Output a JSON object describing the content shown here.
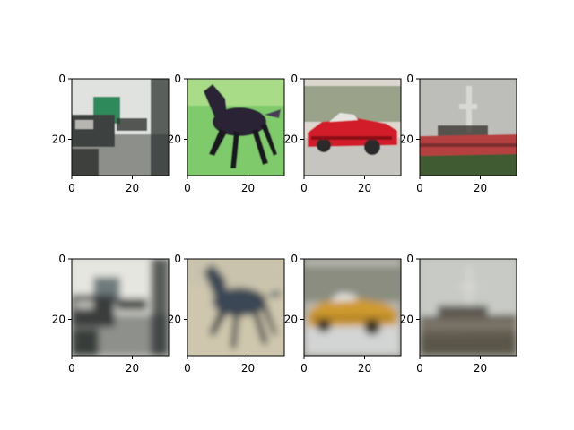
{
  "chart_data": {
    "type": "image-grid",
    "rows": 2,
    "cols": 4,
    "axis": {
      "xlim": [
        0,
        32
      ],
      "ylim": [
        32,
        0
      ],
      "xticks": [
        0,
        20
      ],
      "yticks": [
        0,
        20
      ],
      "xtick_labels": [
        "0",
        "20"
      ],
      "ytick_labels": [
        "0",
        "20"
      ]
    },
    "panels": [
      {
        "row": 0,
        "col": 0,
        "image_kind": "sharp",
        "content": "truck",
        "palette": {
          "bg": "#c8cbc6",
          "sky": "#dfe2de",
          "ground": "#8d8f8a",
          "obj": "#3d4240",
          "obj2": "#2d8a5a",
          "accent": "#b8b6b2",
          "dark": "#2e3330"
        }
      },
      {
        "row": 0,
        "col": 1,
        "image_kind": "sharp",
        "content": "horse",
        "palette": {
          "bg": "#7fca6a",
          "sky": "#a9dc86",
          "ground": "#79c464",
          "obj": "#2a2036",
          "obj2": "#4a3a56",
          "accent": "#e8e0e4",
          "dark": "#1a1422"
        }
      },
      {
        "row": 0,
        "col": 2,
        "image_kind": "sharp",
        "content": "car",
        "palette": {
          "bg": "#9aa38a",
          "sky": "#dcd8cf",
          "ground": "#c6c5c0",
          "obj": "#d21f2a",
          "obj2": "#8c1019",
          "accent": "#e6e4e0",
          "dark": "#2a2a2a"
        }
      },
      {
        "row": 0,
        "col": 3,
        "image_kind": "sharp",
        "content": "ship",
        "palette": {
          "bg": "#a8a8a4",
          "sky": "#bdbdb9",
          "ground": "#3f5a33",
          "obj": "#b54040",
          "obj2": "#7a2e2e",
          "accent": "#d8d8d4",
          "dark": "#3c3834"
        }
      },
      {
        "row": 1,
        "col": 0,
        "image_kind": "blurry",
        "content": "truck",
        "palette": {
          "bg": "#d8d8d2",
          "sky": "#e6e6e0",
          "ground": "#8e908c",
          "obj": "#3a3e3e",
          "obj2": "#6e7a7c",
          "accent": "#b9b9b4",
          "dark": "#2a2e2c"
        }
      },
      {
        "row": 1,
        "col": 1,
        "image_kind": "blurry",
        "content": "horse",
        "palette": {
          "bg": "#cfc7ad",
          "sky": "#c9c3ad",
          "ground": "#b8ad8f",
          "obj": "#3b4654",
          "obj2": "#5f6d78",
          "accent": "#e2dcc6",
          "dark": "#2e3440"
        }
      },
      {
        "row": 1,
        "col": 2,
        "image_kind": "blurry",
        "content": "car",
        "palette": {
          "bg": "#8a8d80",
          "sky": "#bbbab2",
          "ground": "#d3d4d4",
          "obj": "#cf9a2e",
          "obj2": "#9f7422",
          "accent": "#e5e5e2",
          "dark": "#3a3628"
        }
      },
      {
        "row": 1,
        "col": 3,
        "image_kind": "blurry",
        "content": "ship",
        "palette": {
          "bg": "#bcbeba",
          "sky": "#c8cac6",
          "ground": "#5a564a",
          "obj": "#6a6458",
          "obj2": "#8c8678",
          "accent": "#d6d6d2",
          "dark": "#3e3a32"
        }
      }
    ]
  }
}
